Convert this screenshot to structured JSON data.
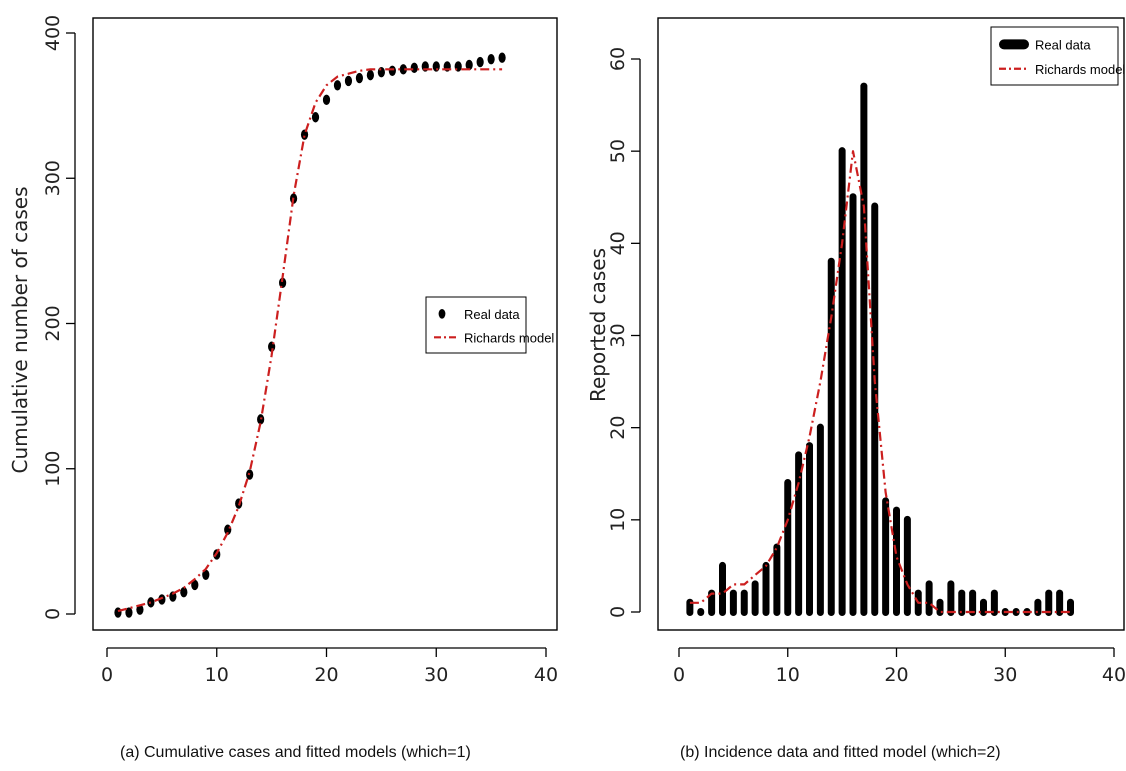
{
  "chart_data": [
    {
      "type": "scatter",
      "panel": "a",
      "caption": "(a) Cumulative cases and fitted models (which=1)",
      "ylabel": "Cumulative number of cases",
      "xlabel": "",
      "xlim": [
        0,
        40
      ],
      "ylim": [
        0,
        400
      ],
      "xticks": [
        0,
        10,
        20,
        30,
        40
      ],
      "yticks": [
        0,
        100,
        200,
        300,
        400
      ],
      "grid": false,
      "legend": {
        "placement": "right",
        "entries": [
          {
            "label": "Real data",
            "style": "point",
            "color": "#000000"
          },
          {
            "label": "Richards model",
            "style": "dash-dot",
            "color": "#cc1f1f"
          }
        ]
      },
      "series": [
        {
          "name": "Real data",
          "style": "points",
          "x": [
            1,
            2,
            3,
            4,
            5,
            6,
            7,
            8,
            9,
            10,
            11,
            12,
            13,
            14,
            15,
            16,
            17,
            18,
            19,
            20,
            21,
            22,
            23,
            24,
            25,
            26,
            27,
            28,
            29,
            30,
            31,
            32,
            33,
            34,
            35,
            36
          ],
          "y": [
            1,
            1,
            3,
            8,
            10,
            12,
            15,
            20,
            27,
            41,
            58,
            76,
            96,
            134,
            184,
            228,
            286,
            330,
            342,
            354,
            364,
            367,
            369,
            371,
            373,
            374,
            375,
            376,
            377,
            377,
            377,
            377,
            378,
            380,
            382,
            383
          ]
        },
        {
          "name": "Richards model",
          "style": "line",
          "x": [
            1,
            2,
            3,
            4,
            5,
            6,
            7,
            8,
            9,
            10,
            11,
            12,
            13,
            14,
            15,
            16,
            17,
            18,
            19,
            20,
            21,
            22,
            23,
            24,
            25,
            26,
            27,
            28,
            29,
            30,
            31,
            32,
            33,
            34,
            35,
            36
          ],
          "y": [
            2,
            4,
            6,
            8,
            11,
            14,
            18,
            24,
            31,
            42,
            56,
            74,
            98,
            132,
            178,
            232,
            288,
            330,
            352,
            364,
            370,
            372,
            374,
            375,
            375,
            375,
            375,
            375,
            375,
            375,
            375,
            375,
            375,
            375,
            375,
            375
          ]
        }
      ]
    },
    {
      "type": "bar",
      "panel": "b",
      "caption": "(b) Incidence data and fitted model (which=2)",
      "ylabel": "Reported cases",
      "xlabel": "",
      "xlim": [
        0,
        40
      ],
      "ylim": [
        0,
        60
      ],
      "xticks": [
        0,
        10,
        20,
        30,
        40
      ],
      "yticks": [
        0,
        10,
        20,
        30,
        40,
        50,
        60
      ],
      "grid": false,
      "legend": {
        "placement": "top-right",
        "entries": [
          {
            "label": "Real data",
            "style": "thick-bar",
            "color": "#000000"
          },
          {
            "label": "Richards model",
            "style": "dash-dot",
            "color": "#cc1f1f"
          }
        ]
      },
      "series": [
        {
          "name": "Real data",
          "style": "bars",
          "x": [
            1,
            2,
            3,
            4,
            5,
            6,
            7,
            8,
            9,
            10,
            11,
            12,
            13,
            14,
            15,
            16,
            17,
            18,
            19,
            20,
            21,
            22,
            23,
            24,
            25,
            26,
            27,
            28,
            29,
            30,
            31,
            32,
            33,
            34,
            35,
            36
          ],
          "y": [
            1,
            0,
            2,
            5,
            2,
            2,
            3,
            5,
            7,
            14,
            17,
            18,
            20,
            38,
            50,
            45,
            57,
            44,
            12,
            11,
            10,
            2,
            3,
            1,
            3,
            2,
            2,
            1,
            2,
            0,
            0,
            0,
            1,
            2,
            2,
            1
          ]
        },
        {
          "name": "Richards model",
          "style": "line",
          "x": [
            1,
            2,
            3,
            4,
            5,
            6,
            7,
            8,
            9,
            10,
            11,
            12,
            13,
            14,
            15,
            16,
            17,
            18,
            19,
            20,
            21,
            22,
            23,
            24,
            25,
            26,
            27,
            28,
            29,
            30,
            31,
            32,
            33,
            34,
            35,
            36
          ],
          "y": [
            1,
            1,
            2,
            2,
            3,
            3,
            4,
            5,
            7,
            10,
            14,
            19,
            25,
            32,
            40,
            50,
            44,
            25,
            13,
            6,
            3,
            1,
            1,
            0,
            0,
            0,
            0,
            0,
            0,
            0,
            0,
            0,
            0,
            0,
            0,
            0
          ]
        }
      ]
    }
  ]
}
